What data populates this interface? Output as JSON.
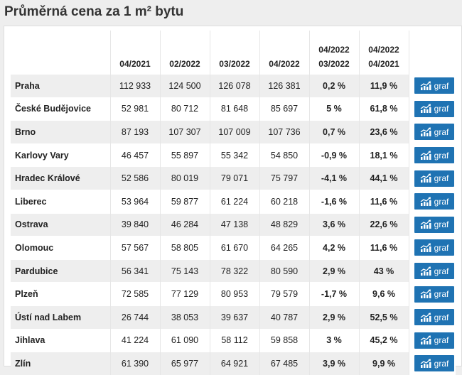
{
  "title": "Průměrná cena za 1 m² bytu",
  "columns": [
    "",
    "04/2021",
    "02/2022",
    "03/2022",
    "04/2022",
    [
      "04/2022",
      "03/2022"
    ],
    [
      "04/2022",
      "04/2021"
    ],
    ""
  ],
  "button_label": "graf",
  "button_icon": "chart-icon",
  "rows": [
    [
      "Praha",
      "112 933",
      "124 500",
      "126 078",
      "126 381",
      "0,2 %",
      "11,9 %"
    ],
    [
      "České Budějovice",
      "52 981",
      "80 712",
      "81 648",
      "85 697",
      "5 %",
      "61,8 %"
    ],
    [
      "Brno",
      "87 193",
      "107 307",
      "107 009",
      "107 736",
      "0,7 %",
      "23,6 %"
    ],
    [
      "Karlovy Vary",
      "46 457",
      "55 897",
      "55 342",
      "54 850",
      "-0,9 %",
      "18,1 %"
    ],
    [
      "Hradec Králové",
      "52 586",
      "80 019",
      "79 071",
      "75 797",
      "-4,1 %",
      "44,1 %"
    ],
    [
      "Liberec",
      "53 964",
      "59 877",
      "61 224",
      "60 218",
      "-1,6 %",
      "11,6 %"
    ],
    [
      "Ostrava",
      "39 840",
      "46 284",
      "47 138",
      "48 829",
      "3,6 %",
      "22,6 %"
    ],
    [
      "Olomouc",
      "57 567",
      "58 805",
      "61 670",
      "64 265",
      "4,2 %",
      "11,6 %"
    ],
    [
      "Pardubice",
      "56 341",
      "75 143",
      "78 322",
      "80 590",
      "2,9 %",
      "43 %"
    ],
    [
      "Plzeň",
      "72 585",
      "77 129",
      "80 953",
      "79 579",
      "-1,7 %",
      "9,6 %"
    ],
    [
      "Ústí nad Labem",
      "26 744",
      "38 053",
      "39 637",
      "40 787",
      "2,9 %",
      "52,5 %"
    ],
    [
      "Jihlava",
      "41 224",
      "61 090",
      "58 112",
      "59 858",
      "3 %",
      "45,2 %"
    ],
    [
      "Zlín",
      "61 390",
      "65 977",
      "64 921",
      "67 485",
      "3,9 %",
      "9,9 %"
    ]
  ]
}
